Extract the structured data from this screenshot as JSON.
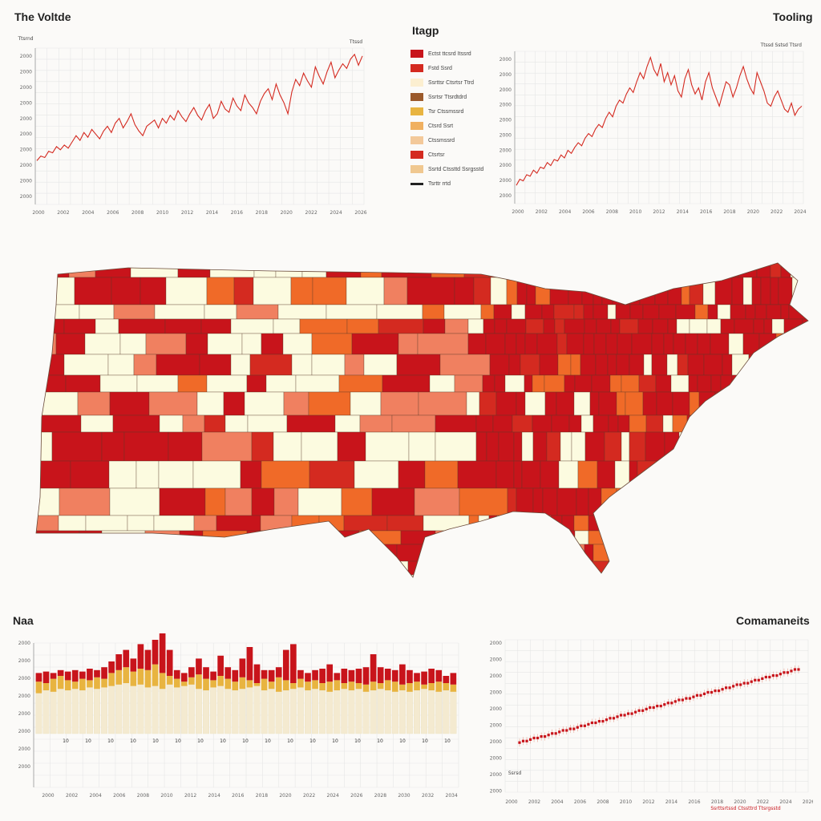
{
  "titles": {
    "top_left": "The Voltde",
    "top_center": "Itagp",
    "top_right": "Tooling",
    "bottom_left": "Naa",
    "bottom_right": "Comamaneits"
  },
  "colors": {
    "dark_red": "#c8141b",
    "red": "#d42a20",
    "salmon": "#f08060",
    "orange": "#f06a28",
    "cream": "#fcfbe0",
    "tan": "#ecc27a",
    "yellow": "#e8b440",
    "brown": "#9b5a2b",
    "grid": "#e6e6e6"
  },
  "legend": {
    "items": [
      {
        "color": "#c8141b",
        "label": "Ectst ttcsrd Itssrd"
      },
      {
        "color": "#d42a20",
        "label": "Fstd   Ssrd"
      },
      {
        "color": "#fcefd0",
        "label": "Ssrttsr Ctsrtsr Ttrd"
      },
      {
        "color": "#9b5a2b",
        "label": "Ssrtsr Ttsrdtdrd"
      },
      {
        "color": "#e8b440",
        "label": "Tsr Ctssmssrd"
      },
      {
        "color": "#f0b060",
        "label": "Ctsrd   Ssrt"
      },
      {
        "color": "#f3c99a",
        "label": "Ctssmssrd"
      },
      {
        "color": "#d42a20",
        "label": "Ctsrtsr"
      },
      {
        "color": "#f0c890",
        "label": "Ssrtd  Ctssttd  Ssrgsstd"
      },
      {
        "color": "#222222",
        "label": "Tsrttr  rrtd"
      }
    ]
  },
  "chart_data": [
    {
      "type": "line",
      "title": "The Voltde",
      "xlabel": "",
      "ylabel": "",
      "series_top_label": "Ttssd",
      "y_top_label": "Ttsrnd",
      "ylim": [
        0,
        100
      ],
      "x_tick_labels": [
        "2000",
        "2002",
        "2004",
        "2006",
        "2008",
        "2010",
        "2012",
        "2014",
        "2016",
        "2018",
        "2020",
        "2022",
        "2024",
        "2026"
      ],
      "y_tick_labels": [
        "2000",
        "2000",
        "2000",
        "2000",
        "2000",
        "2000",
        "2000",
        "2000",
        "2000",
        "2000"
      ],
      "series": [
        {
          "values": [
            28,
            31,
            30,
            34,
            33,
            37,
            35,
            38,
            36,
            40,
            44,
            41,
            46,
            43,
            48,
            45,
            42,
            47,
            50,
            46,
            52,
            55,
            49,
            53,
            58,
            51,
            47,
            44,
            50,
            52,
            54,
            49,
            55,
            52,
            57,
            54,
            60,
            56,
            53,
            58,
            62,
            57,
            54,
            60,
            64,
            55,
            58,
            66,
            61,
            59,
            68,
            63,
            60,
            70,
            65,
            62,
            58,
            66,
            71,
            74,
            67,
            77,
            70,
            65,
            58,
            72,
            80,
            76,
            84,
            79,
            75,
            88,
            82,
            77,
            85,
            91,
            81,
            86,
            90,
            87,
            93,
            96,
            89,
            95
          ]
        }
      ]
    },
    {
      "type": "line",
      "title": "Tooling",
      "xlabel": "",
      "ylabel": "",
      "y_top_label": "Ttssd Sstsd Ttsrd",
      "ylim": [
        0,
        100
      ],
      "x_tick_labels": [
        "2000",
        "2002",
        "2004",
        "2006",
        "2008",
        "2010",
        "2012",
        "2014",
        "2016",
        "2018",
        "2020",
        "2022",
        "2024"
      ],
      "y_tick_labels": [
        "2000",
        "2000",
        "2000",
        "2000",
        "2000",
        "2000",
        "2000",
        "2000",
        "2000",
        "2000"
      ],
      "series": [
        {
          "values": [
            12,
            16,
            15,
            19,
            18,
            22,
            20,
            24,
            23,
            27,
            25,
            29,
            28,
            32,
            30,
            35,
            33,
            37,
            40,
            38,
            43,
            46,
            44,
            49,
            52,
            50,
            56,
            60,
            57,
            64,
            68,
            66,
            72,
            76,
            73,
            80,
            86,
            82,
            90,
            96,
            88,
            84,
            92,
            80,
            86,
            78,
            84,
            74,
            70,
            82,
            88,
            78,
            72,
            76,
            68,
            80,
            86,
            76,
            70,
            64,
            72,
            80,
            78,
            70,
            76,
            84,
            90,
            82,
            76,
            72,
            86,
            80,
            74,
            66,
            64,
            70,
            74,
            68,
            62,
            60,
            66,
            58,
            62,
            64
          ]
        }
      ]
    },
    {
      "type": "bar",
      "title": "Naa",
      "xlabel": "",
      "ylabel": "",
      "ylim": [
        0,
        100
      ],
      "bar_tick_labels": [
        "10",
        "10",
        "10",
        "10",
        "10",
        "10",
        "10",
        "10",
        "10",
        "10",
        "10",
        "10",
        "10",
        "10",
        "10",
        "10",
        "10",
        "10",
        "10"
      ],
      "x_tick_labels": [
        "2000",
        "2002",
        "2004",
        "2006",
        "2008",
        "2010",
        "2012",
        "2014",
        "2016",
        "2018",
        "2020",
        "2022",
        "2024",
        "2026",
        "2028",
        "2030",
        "2032",
        "2034"
      ],
      "y_tick_labels": [
        "2000",
        "2000",
        "2000",
        "2000",
        "2000",
        "2000",
        "2000",
        "2000"
      ],
      "series": [
        {
          "values": [
            28,
            30,
            29,
            31,
            30,
            31,
            30,
            32,
            31,
            32,
            33,
            34,
            35,
            33,
            34,
            32,
            33,
            31,
            34,
            32,
            33,
            34,
            31,
            30,
            32,
            33,
            31,
            30,
            31,
            32,
            33,
            30,
            31,
            29,
            30,
            31,
            32,
            30,
            31,
            30,
            29,
            30,
            31,
            30,
            31,
            29,
            30,
            31,
            30,
            29,
            30,
            29,
            30,
            31,
            30,
            29,
            30,
            29
          ]
        },
        {
          "values": [
            36,
            35,
            38,
            40,
            37,
            36,
            38,
            37,
            39,
            38,
            42,
            44,
            46,
            43,
            45,
            44,
            48,
            42,
            40,
            38,
            36,
            39,
            41,
            38,
            37,
            40,
            38,
            36,
            39,
            37,
            35,
            38,
            36,
            39,
            37,
            35,
            38,
            36,
            37,
            35,
            36,
            37,
            35,
            36,
            35,
            34,
            36,
            35,
            37,
            36,
            34,
            35,
            36,
            34,
            35,
            36,
            35,
            34
          ]
        },
        {
          "values": [
            42,
            43,
            42,
            44,
            43,
            44,
            43,
            45,
            44,
            46,
            50,
            55,
            58,
            52,
            62,
            58,
            65,
            78,
            58,
            44,
            42,
            46,
            52,
            46,
            43,
            54,
            46,
            44,
            52,
            60,
            48,
            44,
            44,
            46,
            58,
            62,
            44,
            42,
            44,
            45,
            48,
            42,
            45,
            44,
            45,
            46,
            55,
            46,
            45,
            44,
            48,
            44,
            42,
            43,
            45,
            44,
            40,
            42
          ]
        }
      ]
    },
    {
      "type": "scatter",
      "title": "Comamaneits",
      "xlabel": "",
      "ylabel": "",
      "legend_label": "Ssrsd",
      "ylim": [
        0,
        100
      ],
      "x_tick_labels": [
        "2000",
        "2002",
        "2004",
        "2006",
        "2008",
        "2010",
        "2012",
        "2014",
        "2016",
        "2018",
        "2020",
        "2022",
        "2024",
        "2026"
      ],
      "y_tick_labels": [
        "2000",
        "2000",
        "2000",
        "2000",
        "2000",
        "2000",
        "2000",
        "2000",
        "2000",
        "2000"
      ],
      "bottom_annotation": "Ssrttsrtssd  Ctssttrd  Ttsrgsstd",
      "series": [
        {
          "values": [
            22,
            23,
            23,
            24,
            25,
            25,
            26,
            26,
            27,
            28,
            28,
            29,
            30,
            30,
            31,
            31,
            32,
            33,
            33,
            34,
            35,
            35,
            36,
            36,
            37,
            38,
            38,
            39,
            40,
            40,
            41,
            41,
            42,
            43,
            43,
            44,
            45,
            45,
            46,
            46,
            47,
            48,
            48,
            49,
            50,
            50,
            51,
            51,
            52,
            53,
            53,
            54,
            55,
            55,
            56,
            56,
            57,
            58,
            58,
            59,
            60,
            60,
            61,
            61,
            62,
            63,
            63,
            64,
            65,
            65,
            66,
            66,
            67,
            68,
            68,
            69,
            70,
            70
          ]
        }
      ]
    }
  ]
}
